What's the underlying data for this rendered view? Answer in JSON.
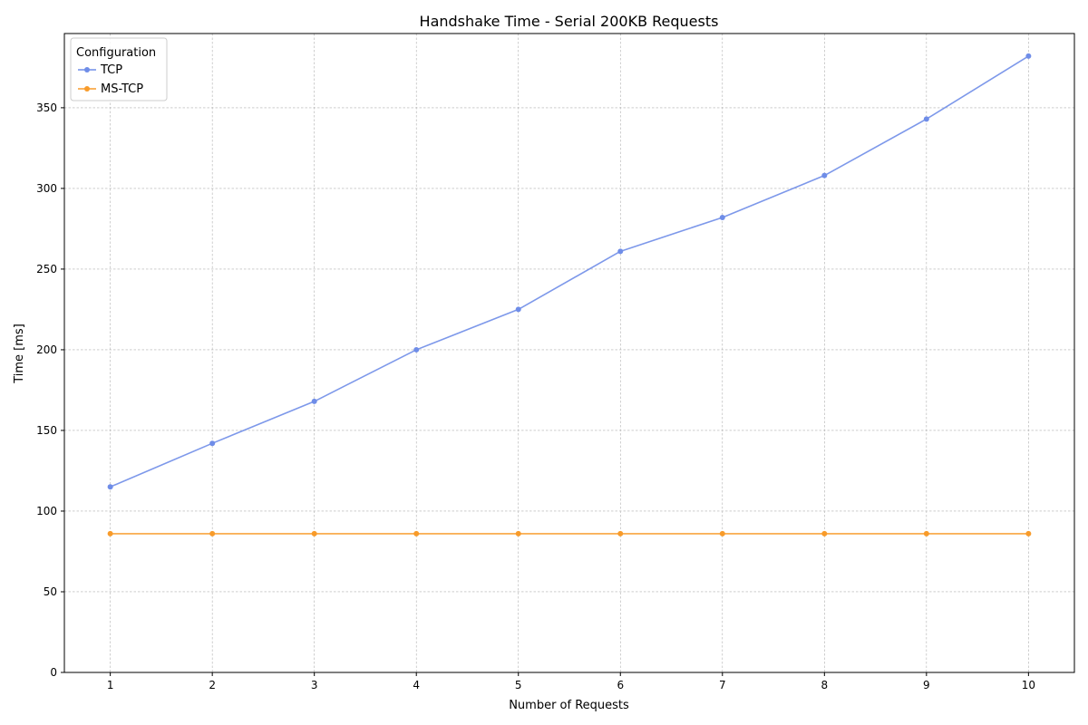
{
  "chart_data": {
    "type": "line",
    "title": "Handshake Time - Serial 200KB Requests",
    "xlabel": "Number of Requests",
    "ylabel": "Time [ms]",
    "x": [
      1,
      2,
      3,
      4,
      5,
      6,
      7,
      8,
      9,
      10
    ],
    "xlim": [
      0.55,
      10.45
    ],
    "ylim": [
      0,
      396
    ],
    "xticks": [
      1,
      2,
      3,
      4,
      5,
      6,
      7,
      8,
      9,
      10
    ],
    "yticks": [
      0,
      50,
      100,
      150,
      200,
      250,
      300,
      350
    ],
    "grid": true,
    "legend": {
      "title": "Configuration",
      "placement": "top-left"
    },
    "series": [
      {
        "name": "TCP",
        "color": "#6f8de8",
        "values": [
          115,
          142,
          168,
          200,
          225,
          261,
          282,
          308,
          343,
          382
        ]
      },
      {
        "name": "MS-TCP",
        "color": "#f89b2a",
        "values": [
          86,
          86,
          86,
          86,
          86,
          86,
          86,
          86,
          86,
          86
        ]
      }
    ]
  }
}
